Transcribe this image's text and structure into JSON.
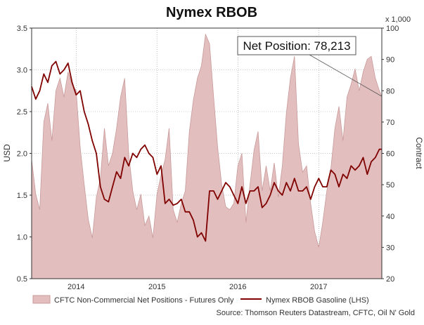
{
  "colors": {
    "area_fill": "#e2bebe",
    "area_stroke": "#c99a9a",
    "line": "#800000",
    "grid": "#9a9a9a",
    "frame": "#333333"
  },
  "chart_data": {
    "type": "line",
    "title": "Nymex RBOB",
    "ylabel": "USD",
    "y2label": "Contract",
    "y2_multiplier_label": "x 1,000",
    "ylim": [
      0.5,
      3.5
    ],
    "y2lim": [
      20,
      100
    ],
    "xlim": [
      2013.45,
      2017.78
    ],
    "yticks": [
      "0.5",
      "1.0",
      "1.5",
      "2.0",
      "2.5",
      "3.0",
      "3.5"
    ],
    "y2ticks": [
      "20",
      "30",
      "40",
      "50",
      "60",
      "70",
      "80",
      "90",
      "100"
    ],
    "xticks": [
      {
        "x": 2014.0,
        "label": "2014"
      },
      {
        "x": 2015.0,
        "label": "2015"
      },
      {
        "x": 2016.0,
        "label": "2016"
      },
      {
        "x": 2017.0,
        "label": "2017"
      }
    ],
    "grid": true,
    "legend_position": "bottom",
    "annotation": {
      "text": "Net Position: 78,213",
      "target_x": 2017.78,
      "target_y2": 78.213
    },
    "source": "Source: Thomson Reuters Datastream, CFTC, Oil N' Gold",
    "series": [
      {
        "name": "CFTC Non-Commercial Net Positions - Futures Only",
        "axis": "right",
        "kind": "area",
        "x": [
          2013.45,
          2013.5,
          2013.55,
          2013.6,
          2013.65,
          2013.7,
          2013.75,
          2013.8,
          2013.85,
          2013.9,
          2013.95,
          2014.0,
          2014.05,
          2014.1,
          2014.15,
          2014.2,
          2014.25,
          2014.3,
          2014.35,
          2014.4,
          2014.45,
          2014.5,
          2014.55,
          2014.6,
          2014.65,
          2014.7,
          2014.75,
          2014.8,
          2014.85,
          2014.9,
          2014.95,
          2015.0,
          2015.05,
          2015.1,
          2015.15,
          2015.2,
          2015.25,
          2015.3,
          2015.35,
          2015.4,
          2015.45,
          2015.5,
          2015.55,
          2015.6,
          2015.65,
          2015.7,
          2015.75,
          2015.8,
          2015.85,
          2015.9,
          2015.95,
          2016.0,
          2016.05,
          2016.1,
          2016.15,
          2016.2,
          2016.25,
          2016.3,
          2016.35,
          2016.4,
          2016.45,
          2016.5,
          2016.55,
          2016.6,
          2016.65,
          2016.7,
          2016.75,
          2016.8,
          2016.85,
          2016.9,
          2016.95,
          2017.0,
          2017.05,
          2017.1,
          2017.15,
          2017.2,
          2017.25,
          2017.3,
          2017.35,
          2017.4,
          2017.45,
          2017.5,
          2017.55,
          2017.6,
          2017.65,
          2017.7,
          2017.75,
          2017.78
        ],
        "values": [
          58,
          47,
          42,
          70,
          76,
          64,
          80,
          84,
          78,
          86,
          82,
          80,
          62,
          50,
          39,
          33,
          46,
          52,
          68,
          56,
          60,
          68,
          78,
          84,
          60,
          48,
          42,
          47,
          37,
          40,
          33,
          47,
          53,
          58,
          68,
          42,
          38,
          44,
          48,
          67,
          77,
          84,
          88,
          98,
          95,
          78,
          62,
          50,
          43,
          42,
          44,
          56,
          60,
          38,
          50,
          61,
          67,
          48,
          56,
          48,
          57,
          46,
          56,
          73,
          84,
          91,
          63,
          54,
          56,
          44,
          35,
          30,
          38,
          48,
          55,
          68,
          75,
          64,
          78,
          82,
          87,
          80,
          86,
          90,
          91,
          84,
          80,
          78.213
        ]
      },
      {
        "name": "Nymex RBOB Gasoline (LHS)",
        "axis": "left",
        "kind": "line",
        "x": [
          2013.45,
          2013.5,
          2013.55,
          2013.6,
          2013.65,
          2013.7,
          2013.75,
          2013.8,
          2013.85,
          2013.9,
          2013.95,
          2014.0,
          2014.05,
          2014.1,
          2014.15,
          2014.2,
          2014.25,
          2014.3,
          2014.35,
          2014.4,
          2014.45,
          2014.5,
          2014.55,
          2014.6,
          2014.65,
          2014.7,
          2014.75,
          2014.8,
          2014.85,
          2014.9,
          2014.95,
          2015.0,
          2015.05,
          2015.1,
          2015.15,
          2015.2,
          2015.25,
          2015.3,
          2015.35,
          2015.4,
          2015.45,
          2015.5,
          2015.55,
          2015.6,
          2015.65,
          2015.7,
          2015.75,
          2015.8,
          2015.85,
          2015.9,
          2015.95,
          2016.0,
          2016.05,
          2016.1,
          2016.15,
          2016.2,
          2016.25,
          2016.3,
          2016.35,
          2016.4,
          2016.45,
          2016.5,
          2016.55,
          2016.6,
          2016.65,
          2016.7,
          2016.75,
          2016.8,
          2016.85,
          2016.9,
          2016.95,
          2017.0,
          2017.05,
          2017.1,
          2017.15,
          2017.2,
          2017.25,
          2017.3,
          2017.35,
          2017.4,
          2017.45,
          2017.5,
          2017.55,
          2017.6,
          2017.65,
          2017.7,
          2017.75,
          2017.78
        ],
        "values": [
          2.8,
          2.65,
          2.75,
          2.95,
          2.85,
          3.05,
          3.1,
          2.95,
          3.0,
          3.08,
          2.85,
          2.7,
          2.75,
          2.5,
          2.35,
          2.15,
          2.0,
          1.6,
          1.45,
          1.42,
          1.6,
          1.78,
          1.7,
          1.95,
          1.85,
          2.0,
          1.95,
          2.05,
          2.1,
          2.0,
          1.95,
          1.75,
          1.85,
          1.4,
          1.45,
          1.38,
          1.4,
          1.45,
          1.3,
          1.3,
          1.2,
          1.0,
          1.05,
          0.95,
          1.55,
          1.55,
          1.45,
          1.55,
          1.65,
          1.6,
          1.5,
          1.4,
          1.6,
          1.4,
          1.55,
          1.55,
          1.6,
          1.35,
          1.4,
          1.5,
          1.65,
          1.55,
          1.5,
          1.65,
          1.55,
          1.7,
          1.55,
          1.55,
          1.6,
          1.45,
          1.6,
          1.7,
          1.6,
          1.6,
          1.8,
          1.75,
          1.6,
          1.75,
          1.7,
          1.85,
          1.8,
          1.85,
          1.95,
          1.75,
          1.9,
          1.95,
          2.05,
          2.05
        ]
      }
    ]
  }
}
